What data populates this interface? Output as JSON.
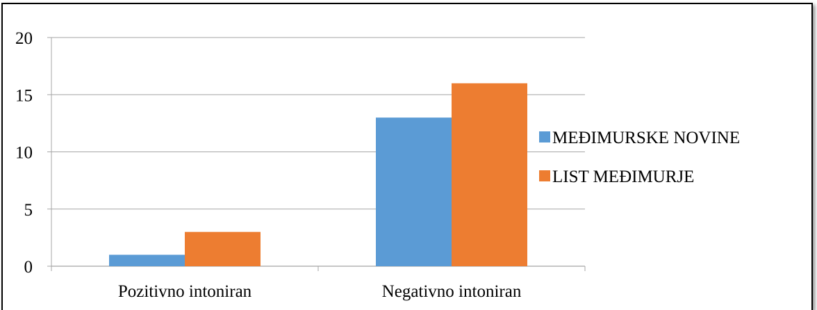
{
  "chart_data": {
    "type": "bar",
    "categories": [
      "Pozitivno intoniran",
      "Negativno intoniran"
    ],
    "series": [
      {
        "name": "MEĐIMURSKE NOVINE",
        "color": "#5b9bd5",
        "values": [
          1,
          13
        ]
      },
      {
        "name": "LIST MEĐIMURJE",
        "color": "#ed7d31",
        "values": [
          3,
          16
        ]
      }
    ],
    "yticks": [
      0,
      5,
      10,
      15,
      20
    ],
    "ylim": [
      0,
      20
    ],
    "grid": true,
    "legend": "right",
    "title": "",
    "xlabel": "",
    "ylabel": ""
  }
}
